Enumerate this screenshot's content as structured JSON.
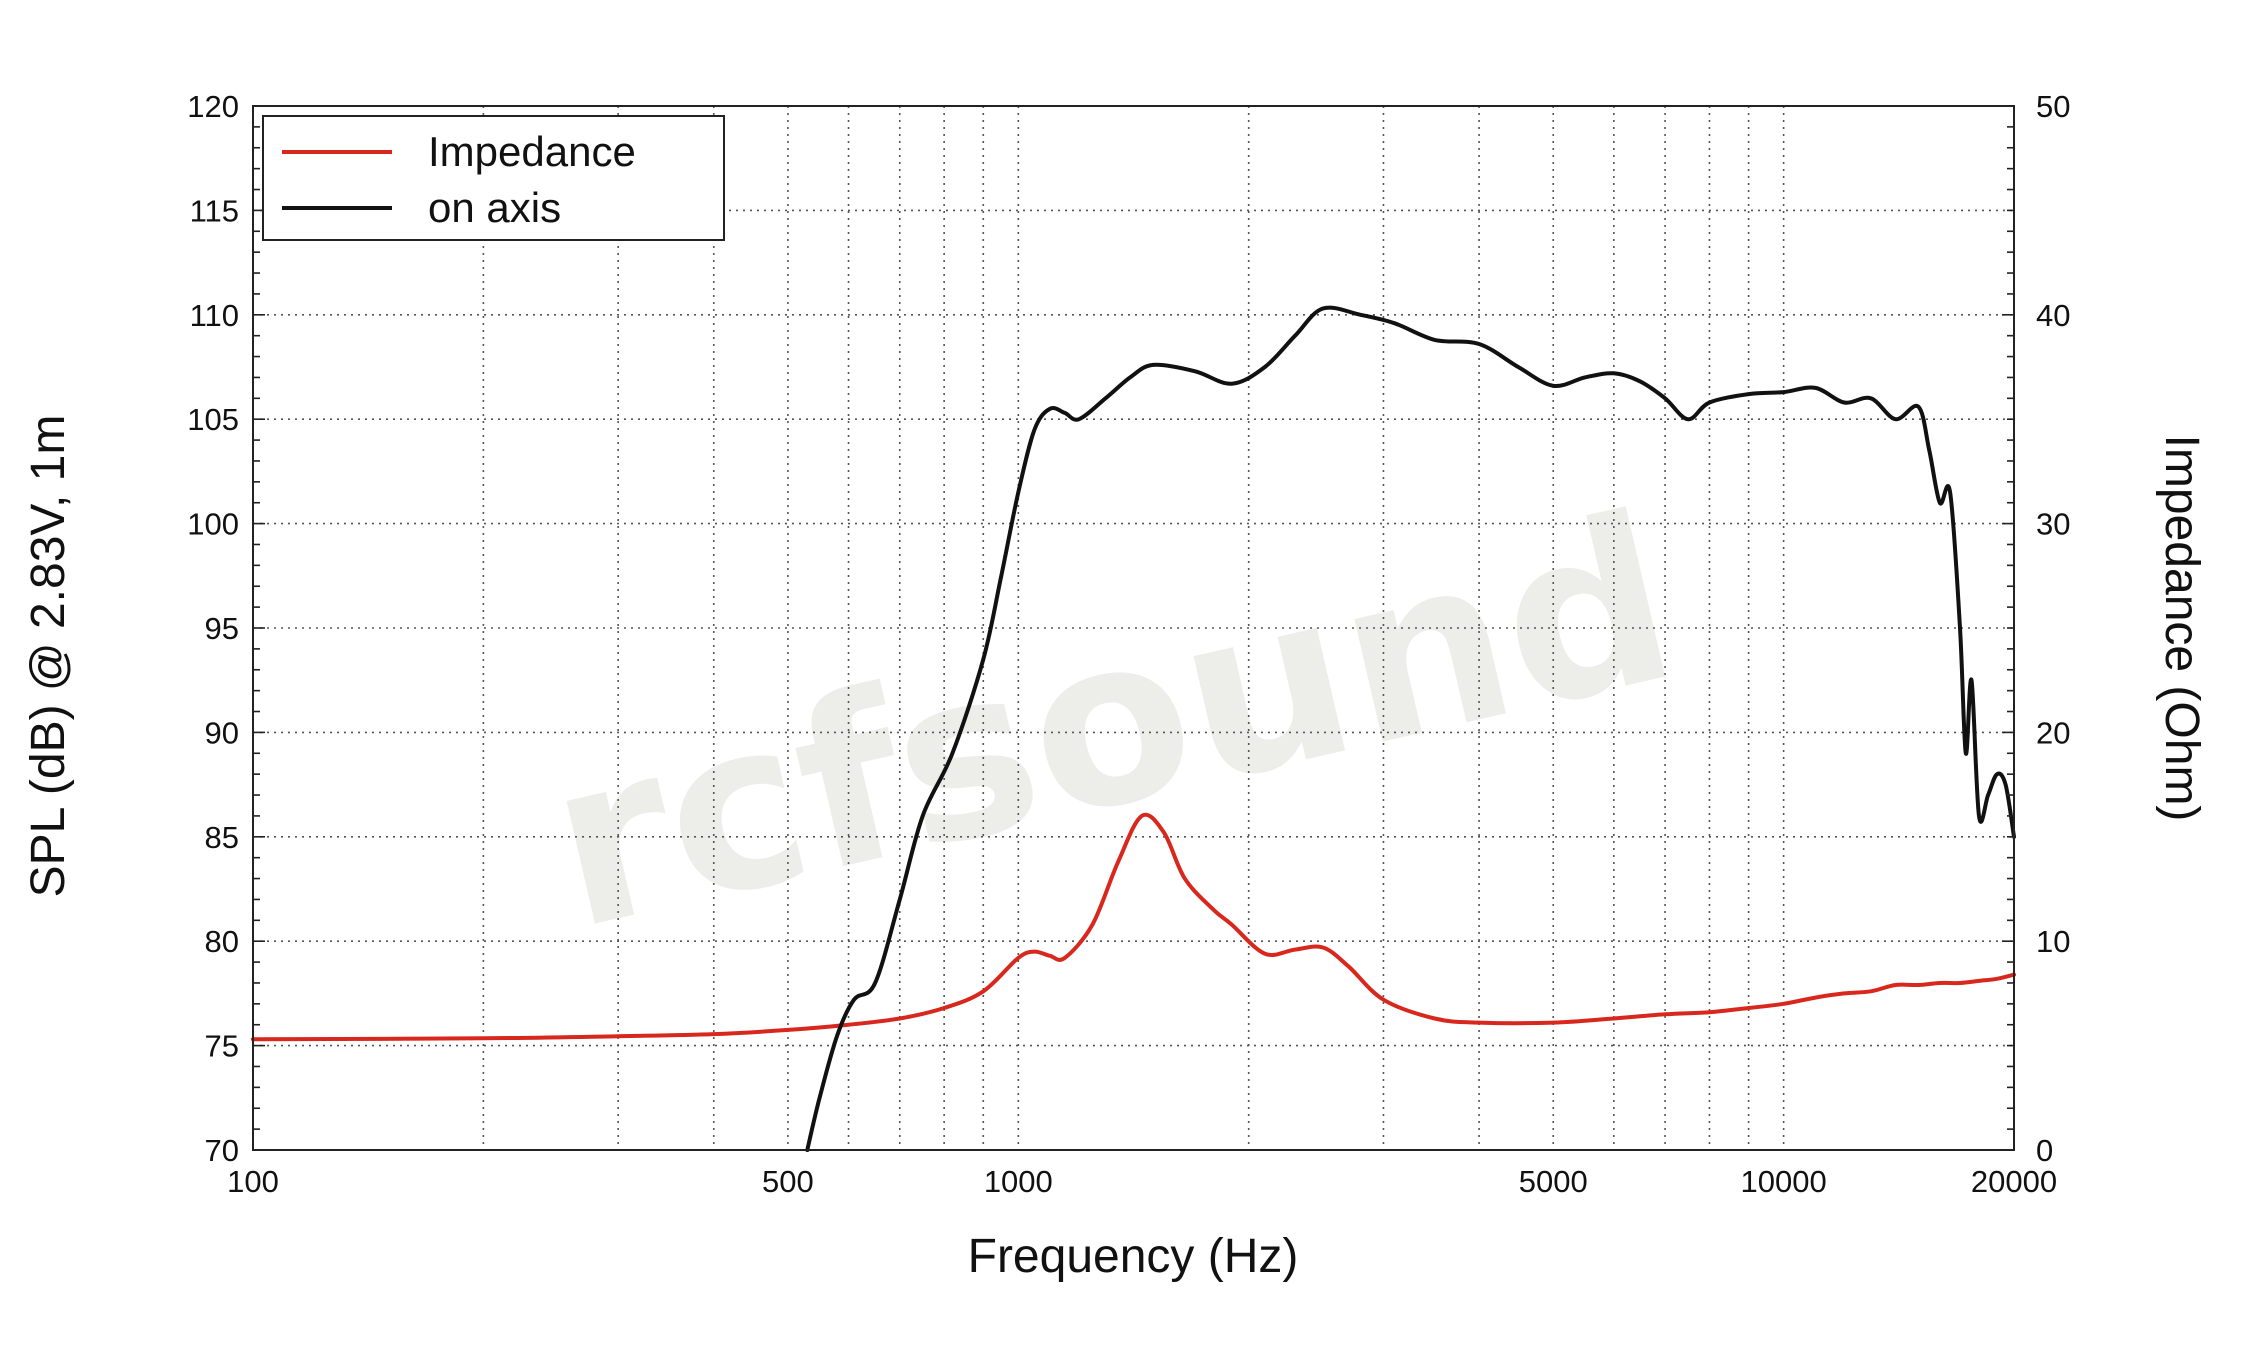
{
  "chart_data": {
    "type": "line",
    "xlabel": "Frequency (Hz)",
    "ylabel": "SPL (dB) @ 2.83V, 1m",
    "y2label": "Impedance (Ohm)",
    "xscale": "log",
    "xlim": [
      100,
      20000
    ],
    "ylim": [
      70,
      120
    ],
    "y2lim": [
      0,
      50
    ],
    "grid": true,
    "legend": "top-left",
    "watermark": "rcfsound",
    "x_tick_labels": [
      "100",
      "500",
      "1000",
      "5000",
      "10000",
      "20000"
    ],
    "y_tick_labels": [
      "70",
      "75",
      "80",
      "85",
      "90",
      "95",
      "100",
      "105",
      "110",
      "115",
      "120"
    ],
    "y2_tick_labels": [
      "0",
      "10",
      "20",
      "30",
      "40",
      "50"
    ],
    "series": [
      {
        "name": "Impedance",
        "axis": "right",
        "color": "#d8281e",
        "x": [
          100,
          200,
          300,
          400,
          500,
          600,
          700,
          800,
          900,
          1000,
          1050,
          1100,
          1150,
          1250,
          1350,
          1450,
          1550,
          1650,
          1800,
          1900,
          2100,
          2300,
          2500,
          2700,
          3000,
          3500,
          4000,
          5000,
          6000,
          7000,
          8000,
          9000,
          10000,
          11000,
          12000,
          13000,
          14000,
          15000,
          16000,
          17000,
          18000,
          19000,
          20000
        ],
        "values": [
          5.3,
          5.35,
          5.45,
          5.55,
          5.75,
          6.0,
          6.3,
          6.8,
          7.6,
          9.2,
          9.5,
          9.3,
          9.2,
          10.8,
          13.8,
          16.0,
          15.2,
          13.0,
          11.5,
          10.8,
          9.4,
          9.6,
          9.7,
          8.8,
          7.2,
          6.3,
          6.1,
          6.1,
          6.3,
          6.5,
          6.6,
          6.8,
          7.0,
          7.3,
          7.5,
          7.6,
          7.9,
          7.9,
          8.0,
          8.0,
          8.1,
          8.2,
          8.4
        ]
      },
      {
        "name": "on axis",
        "axis": "left",
        "color": "#111111",
        "x": [
          530,
          550,
          580,
          610,
          650,
          700,
          750,
          820,
          900,
          950,
          1000,
          1050,
          1100,
          1150,
          1200,
          1300,
          1400,
          1500,
          1700,
          1900,
          2100,
          2300,
          2500,
          2800,
          3100,
          3500,
          4000,
          4500,
          5000,
          5500,
          6000,
          6500,
          7000,
          7500,
          8000,
          9000,
          10000,
          11000,
          12000,
          13000,
          14000,
          15000,
          15500,
          16000,
          16500,
          17000,
          17300,
          17600,
          18000,
          18500,
          19000,
          19500,
          20000
        ],
        "values": [
          70.0,
          72.5,
          75.5,
          77.2,
          78.0,
          82.0,
          86.0,
          89.0,
          93.5,
          97.5,
          101.5,
          104.5,
          105.5,
          105.3,
          105.0,
          106.0,
          107.0,
          107.6,
          107.3,
          106.7,
          107.5,
          109.0,
          110.3,
          110.0,
          109.6,
          108.8,
          108.6,
          107.5,
          106.6,
          107.0,
          107.2,
          106.8,
          106.0,
          105.0,
          105.8,
          106.2,
          106.3,
          106.5,
          105.8,
          106.0,
          105.0,
          105.6,
          103.5,
          101.0,
          101.5,
          95.0,
          89.0,
          92.5,
          86.0,
          87.0,
          88.0,
          87.5,
          85.0
        ]
      }
    ]
  }
}
